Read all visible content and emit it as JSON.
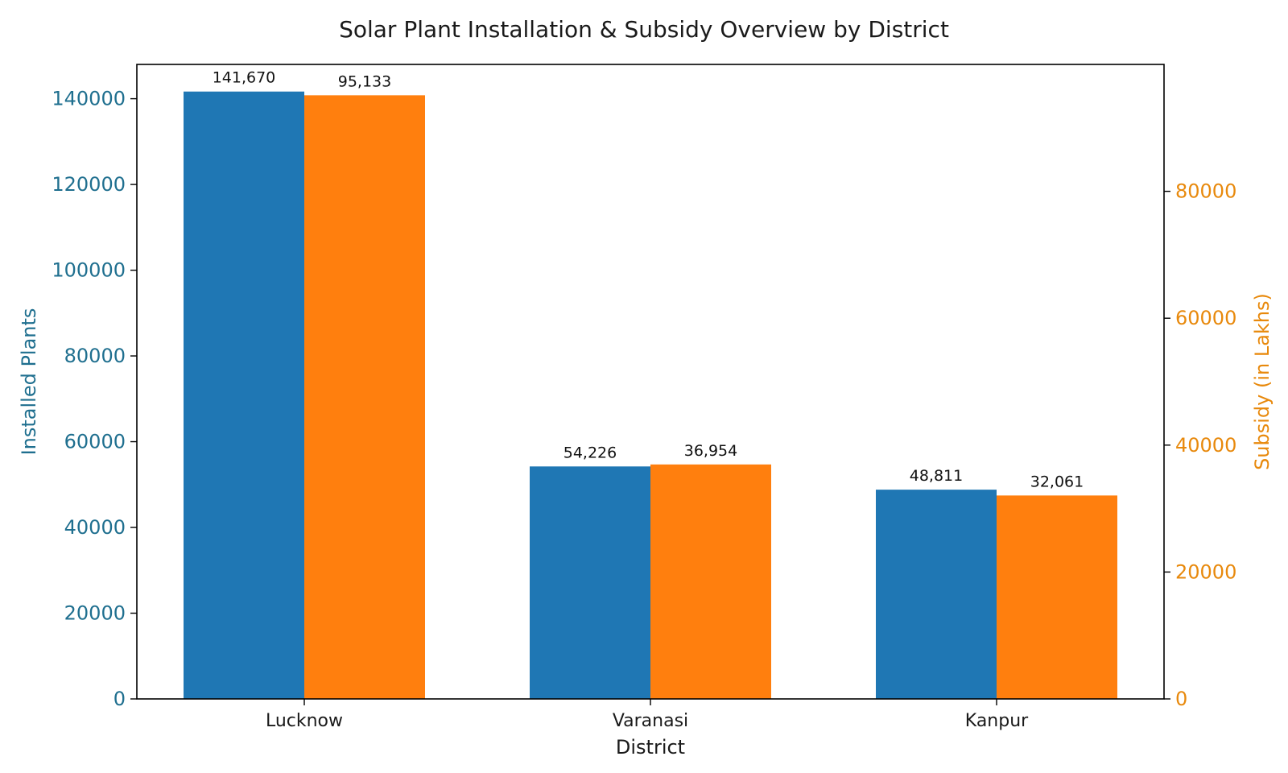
{
  "chart_data": {
    "type": "bar",
    "title": "Solar Plant Installation & Subsidy Overview by District",
    "xlabel": "District",
    "categories": [
      "Lucknow",
      "Varanasi",
      "Kanpur"
    ],
    "y_left": {
      "label": "Installed Plants",
      "ylim": [
        0,
        148000
      ],
      "ticks": [
        0,
        20000,
        40000,
        60000,
        80000,
        100000,
        120000,
        140000
      ],
      "color": "#1f6f8f"
    },
    "y_right": {
      "label": "Subsidy (in Lakhs)",
      "ylim": [
        0,
        100000
      ],
      "ticks": [
        0,
        20000,
        40000,
        60000,
        80000
      ],
      "color": "#e8890c"
    },
    "series": [
      {
        "axis": "left",
        "color": "#1f77b4",
        "values": [
          141670,
          54226,
          48811
        ],
        "labels": [
          "141,670",
          "54,226",
          "48,811"
        ]
      },
      {
        "axis": "right",
        "color": "#ff7f0e",
        "values": [
          95133,
          36954,
          32061
        ],
        "labels": [
          "95,133",
          "36,954",
          "32,061"
        ]
      }
    ],
    "grid": false,
    "legend": "none"
  }
}
